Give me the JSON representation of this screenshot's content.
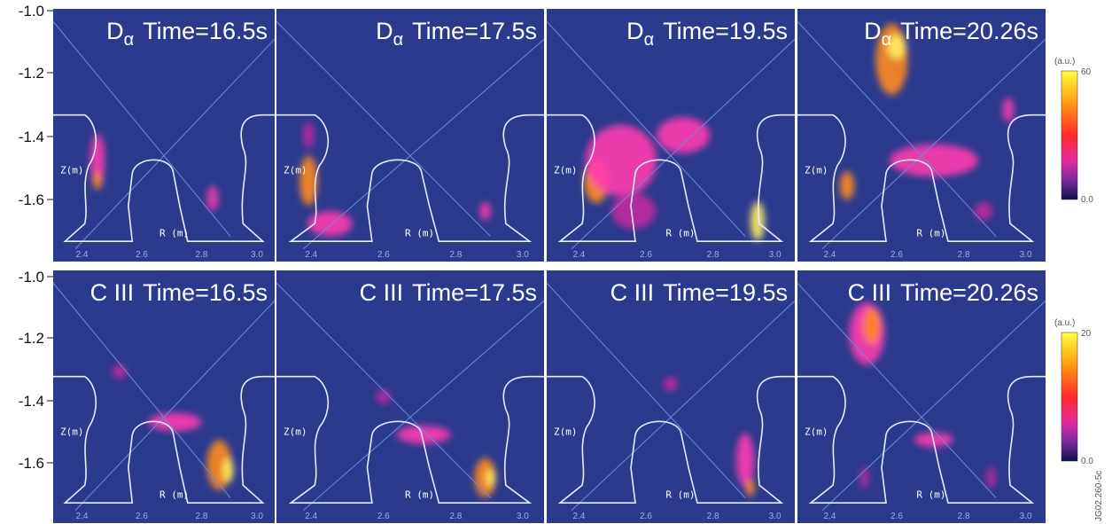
{
  "y_axis_ticks": {
    "row_1": [
      "-1.0",
      "-1.2",
      "-1.4",
      "-1.6"
    ],
    "row_2": [
      "-1.0",
      "-1.2",
      "-1.4",
      "-1.6"
    ]
  },
  "rows": [
    {
      "panels": [
        {
          "title_prefix": "D",
          "title_subscript": "α",
          "title_time": "Time=16.5s"
        },
        {
          "title_prefix": "D",
          "title_subscript": "α",
          "title_time": "Time=17.5s"
        },
        {
          "title_prefix": "D",
          "title_subscript": "α",
          "title_time": "Time=19.5s"
        },
        {
          "title_prefix": "D",
          "title_subscript": "α",
          "title_time": "Time=20.26s"
        }
      ],
      "colorbar": {
        "unit": "(a.u.)",
        "max": "60",
        "min": "0.0"
      }
    },
    {
      "panels": [
        {
          "title_prefix": "C III",
          "title_time": "Time=16.5s"
        },
        {
          "title_prefix": "C III",
          "title_time": "Time=17.5s"
        },
        {
          "title_prefix": "C III",
          "title_time": "Time=19.5s"
        },
        {
          "title_prefix": "C III",
          "title_time": "Time=20.26s"
        }
      ],
      "colorbar": {
        "unit": "(a.u.)",
        "max": "20",
        "min": "0.0"
      }
    }
  ],
  "panel_labels": {
    "z_axis": "Z(m)",
    "r_axis": "R (m)",
    "r_ticks": [
      "2.4",
      "2.6",
      "2.8",
      "3.0"
    ]
  },
  "figure_id": "JG02.260-5c"
}
